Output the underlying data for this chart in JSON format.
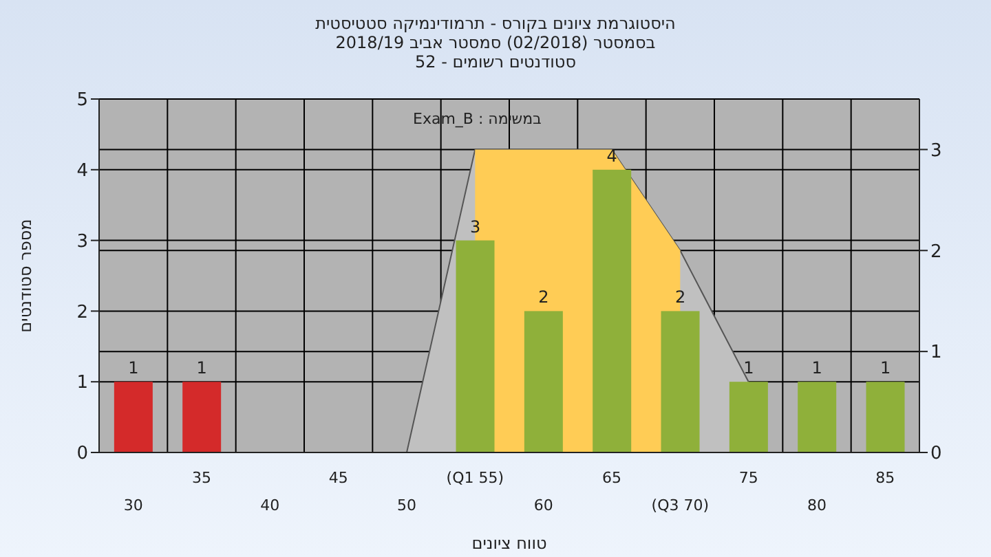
{
  "chart_data": {
    "type": "bar",
    "title": "היסטוגרמת ציונים בקורס - תרמודינמיקה סטטיסטית",
    "subtitle": "בסמסטר  (02/2018)  סמסטר אביב 2018/19",
    "annotations": [
      "סטודנטים רשומים - 52",
      "במשימה : Exam_B"
    ],
    "xlabel": "טווח ציונים",
    "ylabel": "מספר סטודנטים",
    "categories": [
      "30",
      "35",
      "40",
      "45",
      "50",
      "(Q1 55)",
      "60",
      "65",
      "(Q3 70)",
      "75",
      "80",
      "85"
    ],
    "series": [
      {
        "colors": [
          "#d42a2a",
          "#d42a2a",
          "#8fb03a",
          "#8fb03a",
          "#8fb03a",
          "#8fb03a",
          "#8fb03a",
          "#8fb03a",
          "#8fb03a",
          "#8fb03a",
          "#8fb03a",
          "#8fb03a"
        ],
        "values": [
          1,
          1,
          0,
          0,
          0,
          3,
          2,
          4,
          2,
          1,
          1,
          1
        ],
        "value_labels": [
          "1",
          "1",
          null,
          null,
          null,
          "3",
          "2",
          "4",
          "2",
          "1",
          "1",
          "1"
        ]
      },
      {
        "type": "area",
        "axis": "y2",
        "color": "#c0c0c0",
        "values": [
          null,
          null,
          null,
          null,
          0,
          3,
          3,
          3,
          2,
          0.7,
          null,
          null
        ]
      },
      {
        "type": "area",
        "axis": "y2",
        "color": "#ffcc55",
        "values": [
          null,
          null,
          null,
          null,
          null,
          3,
          3,
          3,
          2,
          null,
          null,
          null
        ]
      }
    ],
    "ylim": [
      0,
      5
    ],
    "yticks": [
      0,
      1,
      2,
      3,
      4,
      5
    ],
    "y2lim": [
      0,
      3.5
    ],
    "y2ticks": [
      0,
      1,
      2,
      3
    ],
    "grid": true
  }
}
